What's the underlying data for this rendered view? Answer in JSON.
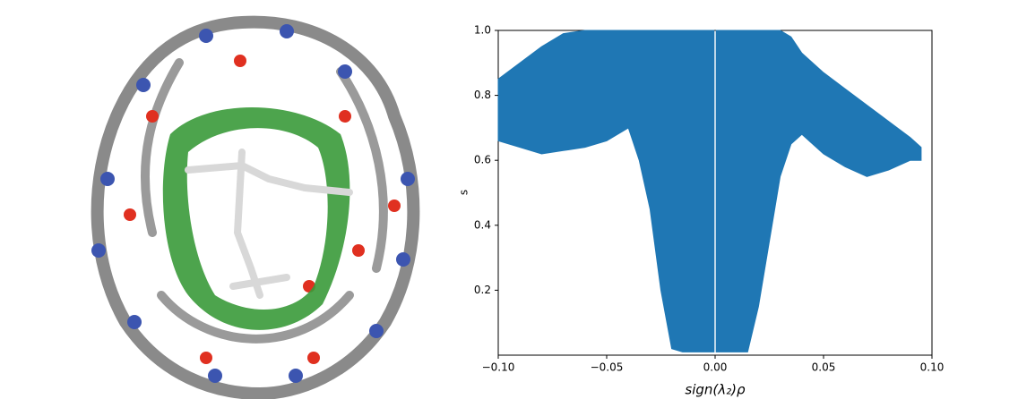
{
  "chart_data": {
    "type": "area_band",
    "xlabel": "sign(λ₂)ρ",
    "ylabel": "s",
    "color": "#1f77b4",
    "x": [
      -0.1,
      -0.09,
      -0.08,
      -0.07,
      -0.06,
      -0.05,
      -0.04,
      -0.035,
      -0.03,
      -0.025,
      -0.02,
      -0.015,
      -0.01,
      -0.005,
      -0.0005,
      0,
      0.0005,
      0.005,
      0.01,
      0.015,
      0.02,
      0.025,
      0.03,
      0.035,
      0.04,
      0.05,
      0.06,
      0.07,
      0.08,
      0.09,
      0.095
    ],
    "y_high": [
      0.85,
      0.9,
      0.95,
      0.99,
      1,
      1,
      1,
      1,
      1,
      1,
      1,
      1,
      1,
      1,
      1,
      null,
      1,
      1,
      1,
      1,
      1,
      1,
      1,
      0.98,
      0.93,
      0.87,
      0.82,
      0.77,
      0.72,
      0.67,
      0.64
    ],
    "y_low": [
      0.66,
      0.64,
      0.62,
      0.63,
      0.64,
      0.66,
      0.7,
      0.6,
      0.45,
      0.2,
      0.02,
      0.01,
      0.01,
      0.01,
      0.01,
      null,
      0.01,
      0.01,
      0.01,
      0.01,
      0.15,
      0.35,
      0.55,
      0.65,
      0.68,
      0.62,
      0.58,
      0.55,
      0.57,
      0.6,
      0.6
    ],
    "xlim": [
      -0.1,
      0.1
    ],
    "xticks": [
      {
        "value": -0.1,
        "label": "−0.10"
      },
      {
        "value": -0.05,
        "label": "−0.05"
      },
      {
        "value": 0,
        "label": "0.00"
      },
      {
        "value": 0.05,
        "label": "0.05"
      },
      {
        "value": 0.1,
        "label": "0.10"
      }
    ],
    "ylim": [
      0,
      1
    ],
    "yticks": [
      0.2,
      0.4,
      0.6,
      0.8,
      {
        "value": 1,
        "label": "1.0"
      }
    ]
  }
}
